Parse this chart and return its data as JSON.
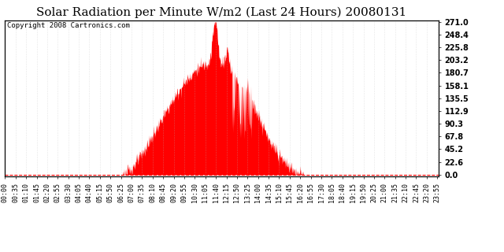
{
  "title": "Solar Radiation per Minute W/m2 (Last 24 Hours) 20080131",
  "copyright_text": "Copyright 2008 Cartronics.com",
  "y_max": 271.0,
  "y_min": 0.0,
  "yticks": [
    0.0,
    22.6,
    45.2,
    67.8,
    90.3,
    112.9,
    135.5,
    158.1,
    180.7,
    203.2,
    225.8,
    248.4,
    271.0
  ],
  "fill_color": "#ff0000",
  "line_color": "#ff0000",
  "bg_color": "#ffffff",
  "grid_color": "#bbbbbb",
  "baseline_color": "#ff0000",
  "title_fontsize": 11,
  "copyright_fontsize": 6.5,
  "tick_fontsize": 6,
  "ytick_fontsize": 7,
  "sunrise_minute": 390,
  "sunset_minute": 990,
  "peak_minute": 695,
  "peak_value": 271.0
}
